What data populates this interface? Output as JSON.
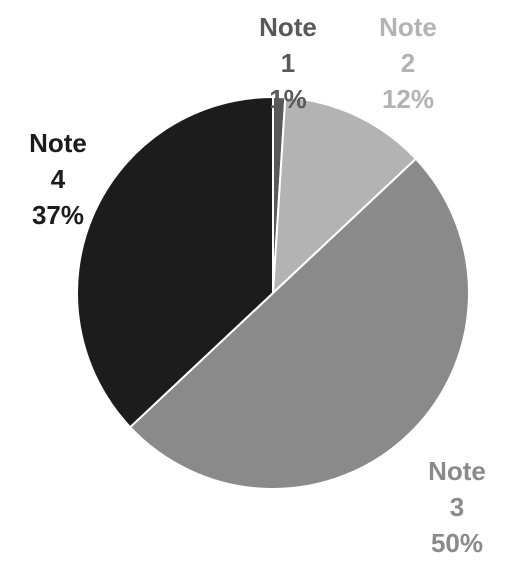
{
  "chart_data": {
    "type": "pie",
    "title": "",
    "legend": "none",
    "slices": [
      {
        "name": "Note 1",
        "value": 1,
        "label_line1": "Note",
        "label_line2": "1",
        "percent": "1%",
        "color": "#595959",
        "label_color": "#595959"
      },
      {
        "name": "Note 2",
        "value": 12,
        "label_line1": "Note",
        "label_line2": "2",
        "percent": "12%",
        "color": "#b3b3b3",
        "label_color": "#b3b3b3"
      },
      {
        "name": "Note 3",
        "value": 50,
        "label_line1": "Note",
        "label_line2": "3",
        "percent": "50%",
        "color": "#8a8a8a",
        "label_color": "#8a8a8a"
      },
      {
        "name": "Note 4",
        "value": 37,
        "label_line1": "Note",
        "label_line2": "4",
        "percent": "37%",
        "color": "#1c1c1c",
        "label_color": "#1c1c1c"
      }
    ]
  }
}
